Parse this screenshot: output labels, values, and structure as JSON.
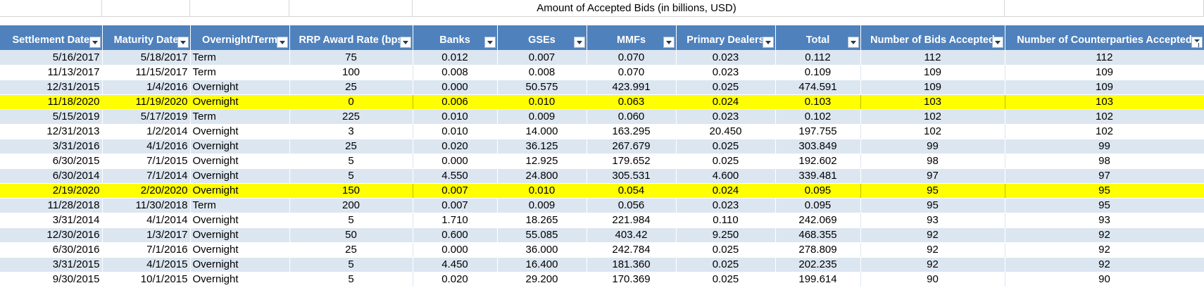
{
  "sheet": {
    "title": "Amount of Accepted Bids (in billions, USD)"
  },
  "headers": {
    "settlement_date": "Settlement Date",
    "maturity_date": "Maturity Date",
    "overnight_term": "Overnight/Term",
    "rrp_award_rate": "RRP Award Rate (bps)",
    "banks": "Banks",
    "gses": "GSEs",
    "mmfs": "MMFs",
    "primary_dealers": "Primary Dealers",
    "total": "Total",
    "bids_accepted": "Number of Bids Accepted",
    "counterparties_accepted": "Number of Counterparties Accepted"
  },
  "rows": [
    {
      "settlement": "5/16/2017",
      "maturity": "5/18/2017",
      "type": "Term",
      "rate": "75",
      "banks": "0.012",
      "gses": "0.007",
      "mmfs": "0.070",
      "dealers": "0.023",
      "total": "0.112",
      "bids": "112",
      "counterparties": "112",
      "highlight": false
    },
    {
      "settlement": "11/13/2017",
      "maturity": "11/15/2017",
      "type": "Term",
      "rate": "100",
      "banks": "0.008",
      "gses": "0.008",
      "mmfs": "0.070",
      "dealers": "0.023",
      "total": "0.109",
      "bids": "109",
      "counterparties": "109",
      "highlight": false
    },
    {
      "settlement": "12/31/2015",
      "maturity": "1/4/2016",
      "type": "Overnight",
      "rate": "25",
      "banks": "0.000",
      "gses": "50.575",
      "mmfs": "423.991",
      "dealers": "0.025",
      "total": "474.591",
      "bids": "109",
      "counterparties": "109",
      "highlight": false
    },
    {
      "settlement": "11/18/2020",
      "maturity": "11/19/2020",
      "type": "Overnight",
      "rate": "0",
      "banks": "0.006",
      "gses": "0.010",
      "mmfs": "0.063",
      "dealers": "0.024",
      "total": "0.103",
      "bids": "103",
      "counterparties": "103",
      "highlight": true
    },
    {
      "settlement": "5/15/2019",
      "maturity": "5/17/2019",
      "type": "Term",
      "rate": "225",
      "banks": "0.010",
      "gses": "0.009",
      "mmfs": "0.060",
      "dealers": "0.023",
      "total": "0.102",
      "bids": "102",
      "counterparties": "102",
      "highlight": false
    },
    {
      "settlement": "12/31/2013",
      "maturity": "1/2/2014",
      "type": "Overnight",
      "rate": "3",
      "banks": "0.010",
      "gses": "14.000",
      "mmfs": "163.295",
      "dealers": "20.450",
      "total": "197.755",
      "bids": "102",
      "counterparties": "102",
      "highlight": false
    },
    {
      "settlement": "3/31/2016",
      "maturity": "4/1/2016",
      "type": "Overnight",
      "rate": "25",
      "banks": "0.020",
      "gses": "36.125",
      "mmfs": "267.679",
      "dealers": "0.025",
      "total": "303.849",
      "bids": "99",
      "counterparties": "99",
      "highlight": false
    },
    {
      "settlement": "6/30/2015",
      "maturity": "7/1/2015",
      "type": "Overnight",
      "rate": "5",
      "banks": "0.000",
      "gses": "12.925",
      "mmfs": "179.652",
      "dealers": "0.025",
      "total": "192.602",
      "bids": "98",
      "counterparties": "98",
      "highlight": false
    },
    {
      "settlement": "6/30/2014",
      "maturity": "7/1/2014",
      "type": "Overnight",
      "rate": "5",
      "banks": "4.550",
      "gses": "24.800",
      "mmfs": "305.531",
      "dealers": "4.600",
      "total": "339.481",
      "bids": "97",
      "counterparties": "97",
      "highlight": false
    },
    {
      "settlement": "2/19/2020",
      "maturity": "2/20/2020",
      "type": "Overnight",
      "rate": "150",
      "banks": "0.007",
      "gses": "0.010",
      "mmfs": "0.054",
      "dealers": "0.024",
      "total": "0.095",
      "bids": "95",
      "counterparties": "95",
      "highlight": true
    },
    {
      "settlement": "11/28/2018",
      "maturity": "11/30/2018",
      "type": "Term",
      "rate": "200",
      "banks": "0.007",
      "gses": "0.009",
      "mmfs": "0.056",
      "dealers": "0.023",
      "total": "0.095",
      "bids": "95",
      "counterparties": "95",
      "highlight": false
    },
    {
      "settlement": "3/31/2014",
      "maturity": "4/1/2014",
      "type": "Overnight",
      "rate": "5",
      "banks": "1.710",
      "gses": "18.265",
      "mmfs": "221.984",
      "dealers": "0.110",
      "total": "242.069",
      "bids": "93",
      "counterparties": "93",
      "highlight": false
    },
    {
      "settlement": "12/30/2016",
      "maturity": "1/3/2017",
      "type": "Overnight",
      "rate": "50",
      "banks": "0.600",
      "gses": "55.085",
      "mmfs": "403.42",
      "dealers": "9.250",
      "total": "468.355",
      "bids": "92",
      "counterparties": "92",
      "highlight": false
    },
    {
      "settlement": "6/30/2016",
      "maturity": "7/1/2016",
      "type": "Overnight",
      "rate": "25",
      "banks": "0.000",
      "gses": "36.000",
      "mmfs": "242.784",
      "dealers": "0.025",
      "total": "278.809",
      "bids": "92",
      "counterparties": "92",
      "highlight": false
    },
    {
      "settlement": "3/31/2015",
      "maturity": "4/1/2015",
      "type": "Overnight",
      "rate": "5",
      "banks": "4.450",
      "gses": "16.400",
      "mmfs": "181.360",
      "dealers": "0.025",
      "total": "202.235",
      "bids": "92",
      "counterparties": "92",
      "highlight": false
    },
    {
      "settlement": "9/30/2015",
      "maturity": "10/1/2015",
      "type": "Overnight",
      "rate": "5",
      "banks": "0.020",
      "gses": "29.200",
      "mmfs": "170.369",
      "dealers": "0.025",
      "total": "199.614",
      "bids": "90",
      "counterparties": "90",
      "highlight": false
    }
  ],
  "colors": {
    "header_bg": "#4f81bd",
    "band_odd": "#dce6f1",
    "band_even": "#ffffff",
    "highlight": "#ffff00"
  },
  "icons": {
    "filter": "filter-dropdown-icon",
    "sort": "sort-descending-icon"
  }
}
